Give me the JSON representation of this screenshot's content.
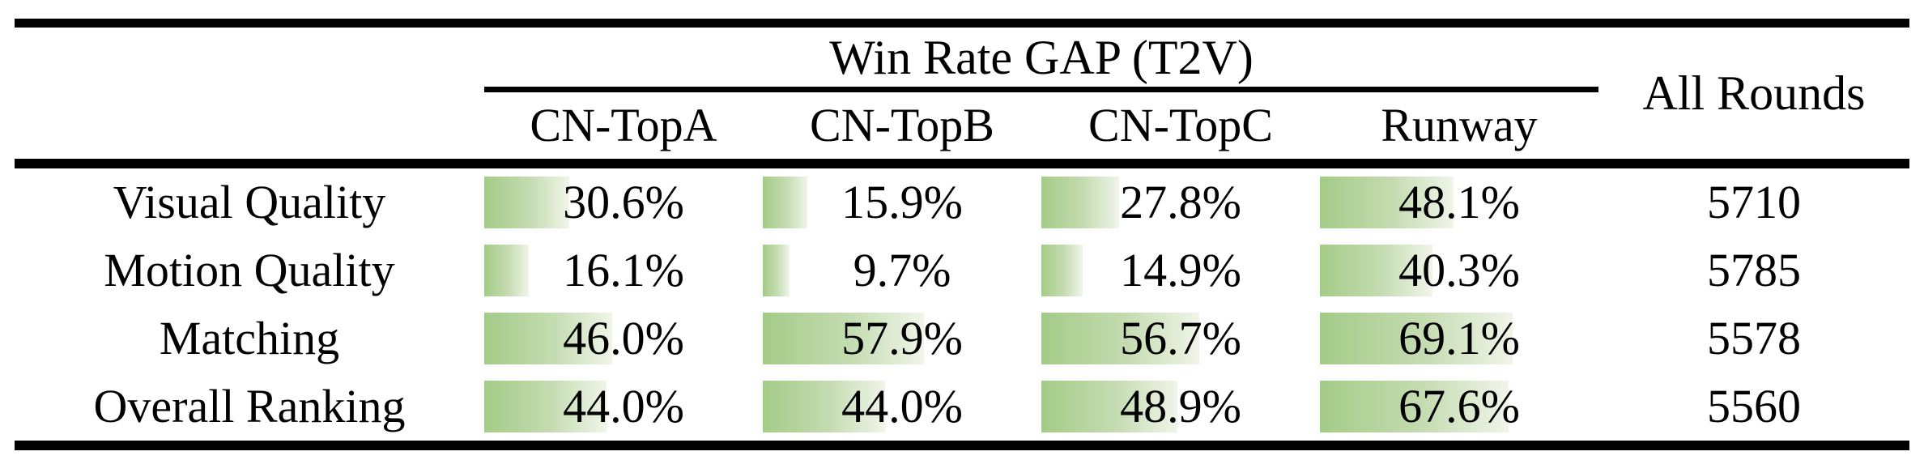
{
  "table": {
    "group_header": "Win Rate GAP (T2V)",
    "all_rounds_label": "All Rounds",
    "columns": [
      "CN-TopA",
      "CN-TopB",
      "CN-TopC",
      "Runway"
    ],
    "rows": [
      {
        "label": "Visual Quality",
        "display": [
          "30.6%",
          "15.9%",
          "27.8%",
          "48.1%"
        ],
        "values": [
          30.6,
          15.9,
          27.8,
          48.1
        ],
        "all_rounds": "5710"
      },
      {
        "label": "Motion Quality",
        "display": [
          "16.1%",
          "9.7%",
          "14.9%",
          "40.3%"
        ],
        "values": [
          16.1,
          9.7,
          14.9,
          40.3
        ],
        "all_rounds": "5785"
      },
      {
        "label": "Matching",
        "display": [
          "46.0%",
          "57.9%",
          "56.7%",
          "69.1%"
        ],
        "values": [
          46.0,
          57.9,
          56.7,
          69.1
        ],
        "all_rounds": "5578"
      },
      {
        "label": "Overall Ranking",
        "display": [
          "44.0%",
          "44.0%",
          "48.9%",
          "67.6%"
        ],
        "values": [
          44.0,
          44.0,
          48.9,
          67.6
        ],
        "all_rounds": "5560"
      }
    ]
  },
  "colors": {
    "bar_gradient_start": "#a4cb87",
    "bar_gradient_mid": "#c5dcb2",
    "bar_gradient_end": "#f0f5e9",
    "rule_color": "#000000",
    "text_color": "#000000"
  },
  "chart_data": {
    "type": "table",
    "title": "Win Rate GAP (T2V)",
    "columns": [
      "CN-TopA",
      "CN-TopB",
      "CN-TopC",
      "Runway",
      "All Rounds"
    ],
    "row_labels": [
      "Visual Quality",
      "Motion Quality",
      "Matching",
      "Overall Ranking"
    ],
    "series": [
      {
        "name": "Visual Quality",
        "values": [
          30.6,
          15.9,
          27.8,
          48.1
        ],
        "all_rounds": 5710
      },
      {
        "name": "Motion Quality",
        "values": [
          16.1,
          9.7,
          14.9,
          40.3
        ],
        "all_rounds": 5785
      },
      {
        "name": "Matching",
        "values": [
          46.0,
          57.9,
          56.7,
          69.1
        ],
        "all_rounds": 5578
      },
      {
        "name": "Overall Ranking",
        "values": [
          44.0,
          44.0,
          48.9,
          67.6
        ],
        "all_rounds": 5560
      }
    ],
    "notes": "Green in-cell bars proportional to win-rate percentage (0-100% of cell width)"
  }
}
